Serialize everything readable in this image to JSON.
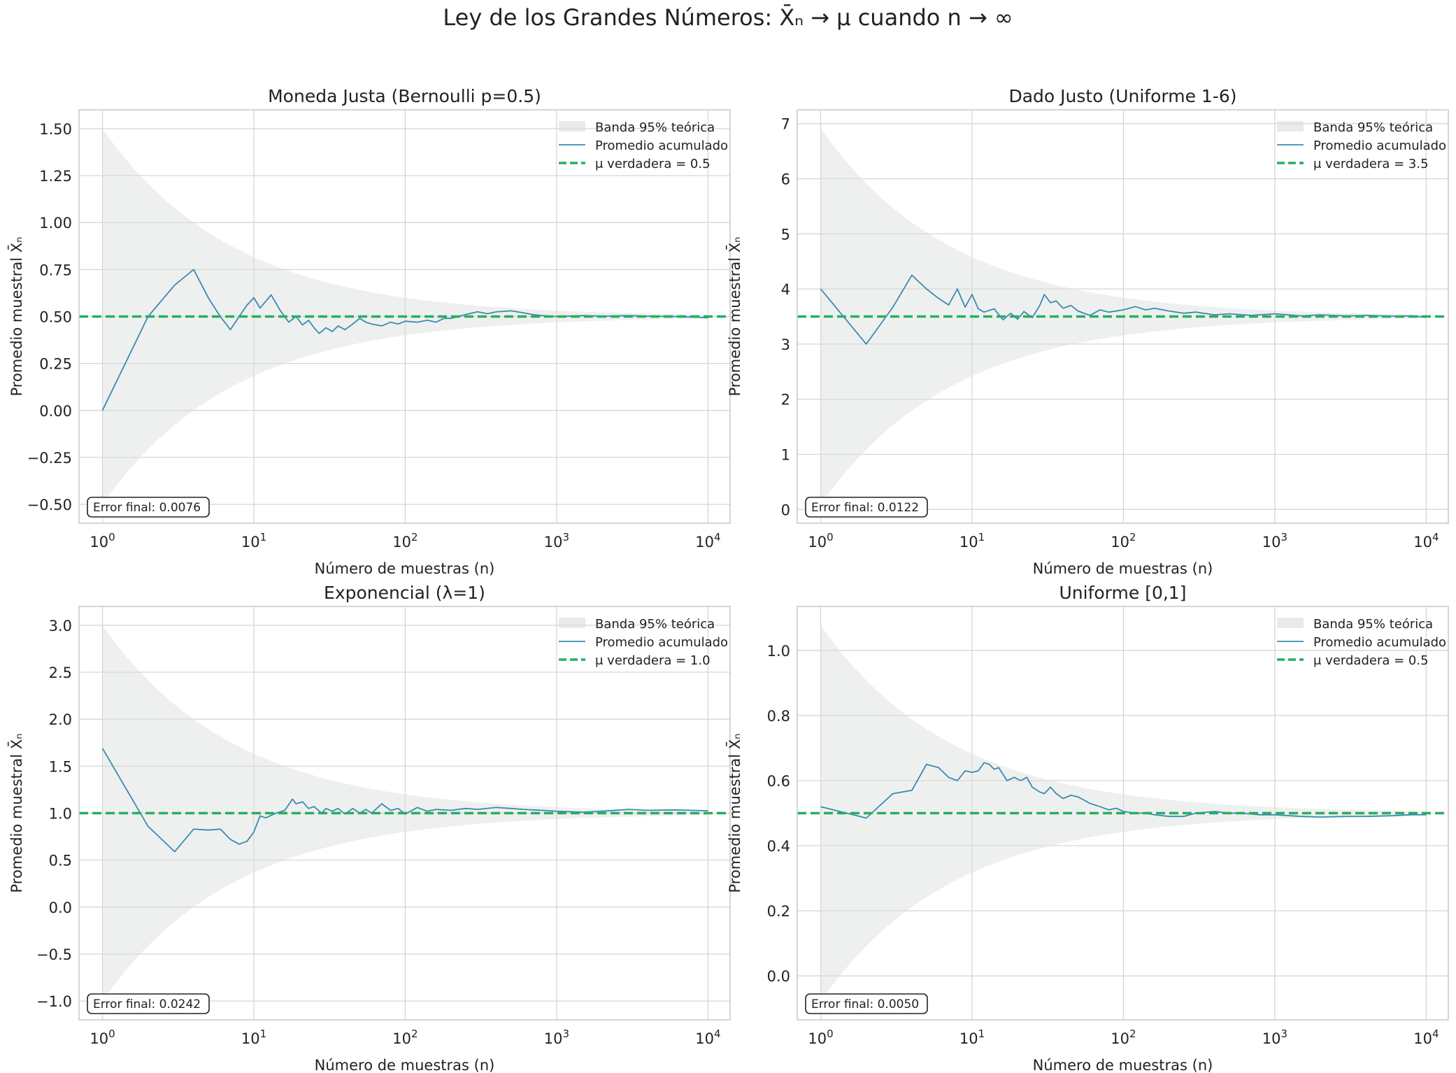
{
  "figure": {
    "suptitle": "Ley de los Grandes Números: X̄ₙ → μ cuando n → ∞"
  },
  "colors": {
    "line": "#3a8bb0",
    "mean": "#27ae60",
    "band": "#d9dedc",
    "grid": "#d6d6d6",
    "axes": "#c8c8c8",
    "text": "#222222"
  },
  "chart_data": [
    {
      "type": "line",
      "title": "Moneda Justa (Bernoulli p=0.5)",
      "xlabel": "Número de muestras (n)",
      "ylabel": "Promedio muestral X̄ₙ",
      "xscale": "log",
      "xlim": [
        0.7,
        14000
      ],
      "xticks": [
        1,
        10,
        100,
        1000,
        10000
      ],
      "xticklabels": [
        [
          "10",
          "0"
        ],
        [
          "10",
          "1"
        ],
        [
          "10",
          "2"
        ],
        [
          "10",
          "3"
        ],
        [
          "10",
          "4"
        ]
      ],
      "ylim": [
        -0.6,
        1.6
      ],
      "yticks": [
        -0.5,
        -0.25,
        0.0,
        0.25,
        0.5,
        0.75,
        1.0,
        1.25,
        1.5
      ],
      "yticklabels": [
        "−0.50",
        "−0.25",
        "0.00",
        "0.25",
        "0.50",
        "0.75",
        "1.00",
        "1.25",
        "1.50"
      ],
      "mu": 0.5,
      "sigma": 0.5,
      "legend": [
        "Banda 95% teórica",
        "Promedio acumulado",
        "μ verdadera = 0.5"
      ],
      "error_label": "Error final: 0.0076",
      "series": {
        "name": "Promedio acumulado",
        "x": [
          1,
          2,
          3,
          4,
          5,
          6,
          7,
          8,
          9,
          10,
          11,
          13,
          15,
          17,
          19,
          21,
          23,
          25,
          27,
          30,
          33,
          36,
          40,
          45,
          50,
          55,
          60,
          70,
          80,
          90,
          100,
          120,
          140,
          160,
          180,
          200,
          250,
          300,
          350,
          400,
          500,
          600,
          700,
          800,
          1000,
          1500,
          2000,
          3000,
          4000,
          6000,
          8000,
          10000
        ],
        "y": [
          0.0,
          0.5,
          0.667,
          0.75,
          0.6,
          0.5,
          0.43,
          0.5,
          0.56,
          0.6,
          0.545,
          0.615,
          0.53,
          0.47,
          0.5,
          0.455,
          0.48,
          0.44,
          0.41,
          0.44,
          0.42,
          0.45,
          0.43,
          0.46,
          0.49,
          0.47,
          0.46,
          0.45,
          0.47,
          0.46,
          0.475,
          0.47,
          0.48,
          0.47,
          0.49,
          0.49,
          0.51,
          0.525,
          0.515,
          0.525,
          0.53,
          0.52,
          0.51,
          0.505,
          0.5,
          0.505,
          0.502,
          0.505,
          0.502,
          0.5,
          0.497,
          0.4924
        ]
      }
    },
    {
      "type": "line",
      "title": "Dado Justo (Uniforme 1-6)",
      "xlabel": "Número de muestras (n)",
      "ylabel": "Promedio muestral X̄ₙ",
      "xscale": "log",
      "xlim": [
        0.7,
        14000
      ],
      "xticks": [
        1,
        10,
        100,
        1000,
        10000
      ],
      "xticklabels": [
        [
          "10",
          "0"
        ],
        [
          "10",
          "1"
        ],
        [
          "10",
          "2"
        ],
        [
          "10",
          "3"
        ],
        [
          "10",
          "4"
        ]
      ],
      "ylim": [
        -0.25,
        7.25
      ],
      "yticks": [
        0,
        1,
        2,
        3,
        4,
        5,
        6,
        7
      ],
      "yticklabels": [
        "0",
        "1",
        "2",
        "3",
        "4",
        "5",
        "6",
        "7"
      ],
      "mu": 3.5,
      "sigma": 1.708,
      "legend": [
        "Banda 95% teórica",
        "Promedio acumulado",
        "μ verdadera = 3.5"
      ],
      "error_label": "Error final: 0.0122",
      "series": {
        "name": "Promedio acumulado",
        "x": [
          1,
          2,
          3,
          4,
          5,
          6,
          7,
          8,
          9,
          10,
          11,
          12,
          14,
          16,
          18,
          20,
          22,
          25,
          28,
          30,
          33,
          36,
          40,
          45,
          50,
          60,
          70,
          80,
          100,
          120,
          140,
          160,
          200,
          250,
          300,
          400,
          500,
          700,
          1000,
          1500,
          2000,
          3000,
          4000,
          6000,
          8000,
          10000
        ],
        "y": [
          4.0,
          3.0,
          3.67,
          4.25,
          4.0,
          3.83,
          3.71,
          4.0,
          3.67,
          3.9,
          3.64,
          3.58,
          3.64,
          3.44,
          3.56,
          3.45,
          3.59,
          3.48,
          3.7,
          3.9,
          3.75,
          3.78,
          3.65,
          3.7,
          3.6,
          3.52,
          3.62,
          3.58,
          3.62,
          3.68,
          3.62,
          3.65,
          3.6,
          3.56,
          3.58,
          3.53,
          3.55,
          3.52,
          3.55,
          3.51,
          3.53,
          3.51,
          3.52,
          3.505,
          3.51,
          3.4878
        ]
      }
    },
    {
      "type": "line",
      "title": "Exponencial (λ=1)",
      "xlabel": "Número de muestras (n)",
      "ylabel": "Promedio muestral X̄ₙ",
      "xscale": "log",
      "xlim": [
        0.7,
        14000
      ],
      "xticks": [
        1,
        10,
        100,
        1000,
        10000
      ],
      "xticklabels": [
        [
          "10",
          "0"
        ],
        [
          "10",
          "1"
        ],
        [
          "10",
          "2"
        ],
        [
          "10",
          "3"
        ],
        [
          "10",
          "4"
        ]
      ],
      "ylim": [
        -1.2,
        3.2
      ],
      "yticks": [
        -1.0,
        -0.5,
        0.0,
        0.5,
        1.0,
        1.5,
        2.0,
        2.5,
        3.0
      ],
      "yticklabels": [
        "−1.0",
        "−0.5",
        "0.0",
        "0.5",
        "1.0",
        "1.5",
        "2.0",
        "2.5",
        "3.0"
      ],
      "mu": 1.0,
      "sigma": 1.0,
      "legend": [
        "Banda 95% teórica",
        "Promedio acumulado",
        "μ verdadera = 1.0"
      ],
      "error_label": "Error final: 0.0242",
      "series": {
        "name": "Promedio acumulado",
        "x": [
          1,
          2,
          3,
          4,
          5,
          6,
          7,
          8,
          9,
          10,
          11,
          12,
          14,
          16,
          18,
          19,
          21,
          23,
          25,
          28,
          30,
          33,
          36,
          40,
          45,
          50,
          55,
          60,
          70,
          80,
          90,
          100,
          120,
          140,
          160,
          200,
          250,
          300,
          400,
          500,
          600,
          800,
          1000,
          1500,
          2000,
          3000,
          4000,
          6000,
          8000,
          10000
        ],
        "y": [
          1.69,
          0.86,
          0.59,
          0.83,
          0.82,
          0.83,
          0.72,
          0.67,
          0.7,
          0.8,
          0.97,
          0.95,
          1.0,
          1.03,
          1.15,
          1.1,
          1.12,
          1.05,
          1.07,
          1.0,
          1.05,
          1.02,
          1.05,
          0.99,
          1.05,
          1.0,
          1.04,
          1.0,
          1.1,
          1.03,
          1.05,
          0.99,
          1.06,
          1.02,
          1.04,
          1.03,
          1.05,
          1.04,
          1.06,
          1.05,
          1.04,
          1.03,
          1.02,
          1.01,
          1.02,
          1.04,
          1.03,
          1.035,
          1.03,
          1.0242
        ]
      }
    },
    {
      "type": "line",
      "title": "Uniforme [0,1]",
      "xlabel": "Número de muestras (n)",
      "ylabel": "Promedio muestral X̄ₙ",
      "xscale": "log",
      "xlim": [
        0.7,
        14000
      ],
      "xticks": [
        1,
        10,
        100,
        1000,
        10000
      ],
      "xticklabels": [
        [
          "10",
          "0"
        ],
        [
          "10",
          "1"
        ],
        [
          "10",
          "2"
        ],
        [
          "10",
          "3"
        ],
        [
          "10",
          "4"
        ]
      ],
      "ylim": [
        -0.135,
        1.135
      ],
      "yticks": [
        0.0,
        0.2,
        0.4,
        0.6,
        0.8,
        1.0
      ],
      "yticklabels": [
        "0.0",
        "0.2",
        "0.4",
        "0.6",
        "0.8",
        "1.0"
      ],
      "mu": 0.5,
      "sigma": 0.2887,
      "legend": [
        "Banda 95% teórica",
        "Promedio acumulado",
        "μ verdadera = 0.5"
      ],
      "error_label": "Error final: 0.0050",
      "series": {
        "name": "Promedio acumulado",
        "x": [
          1,
          2,
          3,
          4,
          5,
          6,
          7,
          8,
          9,
          10,
          11,
          12,
          13,
          14,
          15,
          17,
          19,
          21,
          23,
          25,
          28,
          30,
          33,
          36,
          40,
          45,
          50,
          55,
          60,
          70,
          80,
          90,
          100,
          120,
          140,
          160,
          200,
          250,
          300,
          400,
          500,
          600,
          800,
          1000,
          1500,
          2000,
          3000,
          4000,
          6000,
          8000,
          10000
        ],
        "y": [
          0.52,
          0.485,
          0.56,
          0.57,
          0.65,
          0.64,
          0.61,
          0.6,
          0.63,
          0.625,
          0.63,
          0.655,
          0.65,
          0.635,
          0.64,
          0.6,
          0.61,
          0.6,
          0.61,
          0.58,
          0.565,
          0.56,
          0.58,
          0.56,
          0.545,
          0.555,
          0.55,
          0.54,
          0.53,
          0.52,
          0.51,
          0.515,
          0.505,
          0.5,
          0.5,
          0.495,
          0.49,
          0.49,
          0.5,
          0.505,
          0.5,
          0.5,
          0.495,
          0.495,
          0.49,
          0.488,
          0.49,
          0.49,
          0.492,
          0.495,
          0.495
        ]
      }
    }
  ]
}
